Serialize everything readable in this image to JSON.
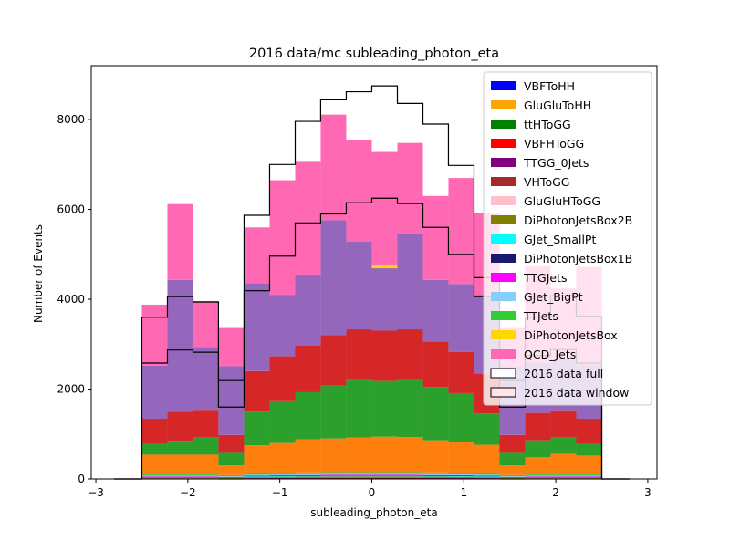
{
  "chart_data": {
    "type": "bar",
    "title": "2016 data/mc subleading_photon_eta",
    "xlabel": "subleading_photon_eta",
    "ylabel": "Number of Events",
    "xlim": [
      -3.05,
      3.1
    ],
    "ylim": [
      0,
      9200
    ],
    "xticks": [
      -3,
      -2,
      -1,
      0,
      1,
      2,
      3
    ],
    "xtick_labels": [
      "−3",
      "−2",
      "−1",
      "0",
      "1",
      "2",
      "3"
    ],
    "yticks": [
      0,
      2000,
      4000,
      6000,
      8000
    ],
    "ytick_labels": [
      "0",
      "2000",
      "4000",
      "6000",
      "8000"
    ],
    "legend_position": "top-right",
    "bin_edges": [
      -2.5,
      -2.222,
      -1.944,
      -1.667,
      -1.389,
      -1.111,
      -0.833,
      -0.556,
      -0.278,
      0.0,
      0.278,
      0.556,
      0.833,
      1.111,
      1.389,
      1.667,
      1.944,
      2.222,
      2.5
    ],
    "series": [
      {
        "name": "VBFToHH",
        "color": "#0000ff",
        "values": [
          5,
          5,
          5,
          4,
          8,
          8,
          9,
          10,
          10,
          10,
          10,
          9,
          9,
          8,
          4,
          5,
          5,
          5
        ]
      },
      {
        "name": "GluGluToHH",
        "color": "#ffa500",
        "values": [
          4,
          4,
          4,
          4,
          6,
          7,
          7,
          8,
          8,
          8,
          8,
          7,
          7,
          6,
          4,
          4,
          4,
          4
        ]
      },
      {
        "name": "ttHToGG",
        "color": "#008000",
        "values": [
          3,
          3,
          3,
          3,
          4,
          5,
          5,
          5,
          5,
          5,
          5,
          5,
          5,
          4,
          3,
          3,
          3,
          3
        ]
      },
      {
        "name": "VBFHToGG",
        "color": "#ff0000",
        "values": [
          3,
          3,
          3,
          3,
          5,
          5,
          6,
          6,
          6,
          6,
          6,
          6,
          5,
          5,
          3,
          3,
          3,
          3
        ]
      },
      {
        "name": "TTGG_0Jets",
        "color": "#800080",
        "values": [
          2,
          2,
          2,
          2,
          3,
          3,
          3,
          3,
          3,
          3,
          3,
          3,
          3,
          3,
          2,
          2,
          2,
          2
        ]
      },
      {
        "name": "VHToGG",
        "color": "#a52a2a",
        "values": [
          3,
          3,
          3,
          3,
          4,
          4,
          4,
          5,
          5,
          5,
          5,
          4,
          4,
          4,
          3,
          3,
          3,
          3
        ]
      },
      {
        "name": "GluGluHToGG",
        "color": "#ffc0cb",
        "values": [
          6,
          6,
          6,
          5,
          9,
          10,
          11,
          12,
          12,
          12,
          12,
          11,
          10,
          9,
          5,
          6,
          6,
          6
        ]
      },
      {
        "name": "DiPhotonJetsBox2B",
        "color": "#808000",
        "values": [
          3,
          3,
          3,
          3,
          5,
          5,
          5,
          6,
          6,
          6,
          6,
          5,
          5,
          5,
          3,
          3,
          3,
          3
        ]
      },
      {
        "name": "GJet_SmallPt",
        "color": "#00ffff",
        "values": [
          15,
          15,
          15,
          10,
          20,
          20,
          20,
          22,
          22,
          22,
          22,
          20,
          20,
          20,
          10,
          15,
          15,
          15
        ]
      },
      {
        "name": "DiPhotonJetsBox1B",
        "color": "#191970",
        "values": [
          6,
          6,
          6,
          5,
          8,
          9,
          9,
          10,
          10,
          10,
          10,
          9,
          9,
          8,
          5,
          6,
          6,
          6
        ]
      },
      {
        "name": "TTGJets",
        "color": "#ff00ff",
        "values": [
          4,
          4,
          4,
          3,
          5,
          5,
          6,
          6,
          6,
          6,
          6,
          6,
          5,
          5,
          3,
          4,
          4,
          4
        ]
      },
      {
        "name": "GJet_BigPt",
        "color": "#87cefa",
        "values": [
          16,
          16,
          16,
          14,
          18,
          19,
          20,
          20,
          20,
          20,
          20,
          20,
          20,
          18,
          14,
          16,
          16,
          16
        ]
      },
      {
        "name": "TTJets",
        "color": "#32cd32",
        "values": [
          30,
          30,
          30,
          25,
          40,
          40,
          40,
          40,
          40,
          40,
          40,
          40,
          40,
          40,
          25,
          30,
          30,
          30
        ]
      },
      {
        "name": "DiPhotonJetsBox",
        "color": "#ffd700",
        "values": [
          0,
          0,
          0,
          0,
          0,
          0,
          0,
          0,
          0,
          0,
          0,
          0,
          0,
          0,
          0,
          0,
          0,
          0
        ]
      },
      {
        "name": "QCD_Jets",
        "color": "#ff69b4",
        "values": [
          0,
          0,
          0,
          0,
          0,
          0,
          0,
          0,
          0,
          0,
          0,
          0,
          0,
          0,
          0,
          0,
          0,
          0
        ]
      }
    ],
    "stack_totals": {
      "orange_top": [
        540,
        540,
        540,
        300,
        750,
        800,
        880,
        900,
        920,
        940,
        930,
        860,
        820,
        760,
        300,
        480,
        560,
        520
      ],
      "green_top": [
        780,
        850,
        920,
        580,
        1500,
        1730,
        1930,
        2080,
        2200,
        2180,
        2230,
        2050,
        1910,
        1460,
        580,
        860,
        920,
        780
      ],
      "red_top": [
        1340,
        1500,
        1540,
        980,
        2400,
        2730,
        2980,
        3200,
        3330,
        3300,
        3330,
        3060,
        2830,
        2350,
        980,
        1470,
        1530,
        1340
      ],
      "purple_top": [
        2520,
        4430,
        2940,
        2510,
        4360,
        4100,
        4550,
        5760,
        5280,
        4700,
        5460,
        4430,
        4340,
        4100,
        2510,
        2580,
        2670,
        2540
      ],
      "pink_top": [
        3880,
        6120,
        3960,
        3360,
        5600,
        6650,
        7060,
        8110,
        7540,
        7280,
        7480,
        6300,
        6700,
        5930,
        3360,
        4740,
        4240,
        4720
      ]
    },
    "dijet_marker": {
      "bin": 9,
      "value": 4720,
      "color": "#ffd700"
    },
    "data_full": [
      3600,
      4060,
      3940,
      2190,
      5870,
      7000,
      7960,
      8440,
      8620,
      8750,
      8360,
      7900,
      6980,
      4480,
      2190,
      3600,
      4080,
      3620
    ],
    "data_window": [
      2580,
      2870,
      2820,
      1600,
      4190,
      4960,
      5700,
      5900,
      6150,
      6250,
      6130,
      5600,
      5000,
      4060,
      1600,
      2750,
      2880,
      2580
    ],
    "legend": [
      {
        "label": "VBFToHH",
        "color": "#0000ff",
        "kind": "fill"
      },
      {
        "label": "GluGluToHH",
        "color": "#ffa500",
        "kind": "fill"
      },
      {
        "label": "ttHToGG",
        "color": "#008000",
        "kind": "fill"
      },
      {
        "label": "VBFHToGG",
        "color": "#ff0000",
        "kind": "fill"
      },
      {
        "label": "TTGG_0Jets",
        "color": "#800080",
        "kind": "fill"
      },
      {
        "label": "VHToGG",
        "color": "#a52a2a",
        "kind": "fill"
      },
      {
        "label": "GluGluHToGG",
        "color": "#ffc0cb",
        "kind": "fill"
      },
      {
        "label": "DiPhotonJetsBox2B",
        "color": "#808000",
        "kind": "fill"
      },
      {
        "label": "GJet_SmallPt",
        "color": "#00ffff",
        "kind": "fill"
      },
      {
        "label": "DiPhotonJetsBox1B",
        "color": "#191970",
        "kind": "fill"
      },
      {
        "label": "TTGJets",
        "color": "#ff00ff",
        "kind": "fill"
      },
      {
        "label": "GJet_BigPt",
        "color": "#87cefa",
        "kind": "fill"
      },
      {
        "label": "TTJets",
        "color": "#32cd32",
        "kind": "fill"
      },
      {
        "label": "DiPhotonJetsBox",
        "color": "#ffd700",
        "kind": "fill"
      },
      {
        "label": "QCD_Jets",
        "color": "#ff69b4",
        "kind": "fill"
      },
      {
        "label": "2016 data full",
        "color": "#ffffff",
        "kind": "outline"
      },
      {
        "label": "2016 data window",
        "color": "#ffe4e8",
        "kind": "outline"
      }
    ]
  }
}
